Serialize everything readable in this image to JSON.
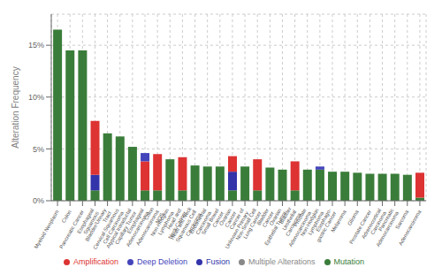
{
  "chart_data": {
    "type": "bar",
    "stacked": true,
    "categories": [
      "Myeloid Neoplasm",
      "Colon",
      "Pancreatic Cancer",
      "Esophageal\nSquamous",
      "Bladder/Urinary\nTract",
      "Cervical Squamous\nCell Carcinoma",
      "Atypical Intraductal\nCapillary Tumor",
      "Esophageal\nAdenocarcinoma",
      "Colon\nAdenocarcinoma\nNOS",
      "Non-Hodgkin\nLymphoma",
      "Head and\nNeck Cancer",
      "Head and Neck\nSquamous Cell\nCarcinoma",
      "Endometrial\nCarcinoma",
      "Small Bowel\nCancer",
      "Ovarian\nCancer",
      "Cancer of\nUnknown Primary",
      "Non-Small Cell\nLung Cancer",
      "Bladder\nCancer",
      "Ovarian\nEpithelial Tumor",
      "Bladder\nUrothelial\nCarcinoma",
      "Prostate\nAdenocarcinoma",
      "Non-Hodgkin\nLymphoma",
      "Esophago-\ngastric Cancer",
      "Melanoma",
      "Glioma",
      "Prostate Cancer",
      "Adrenocortical\nCarcinoma",
      "Pancreatic\nAdenocarcinoma",
      "Sarcoma",
      "Adenocarcinoma"
    ],
    "series": [
      {
        "name": "Mutation",
        "color": "#3a7d3a",
        "values": [
          16.5,
          14.5,
          14.5,
          1.0,
          6.5,
          6.2,
          5.2,
          1.0,
          1.0,
          4.0,
          1.0,
          3.4,
          3.3,
          3.3,
          1.0,
          3.3,
          1.0,
          3.2,
          3.0,
          1.0,
          3.0,
          3.0,
          2.8,
          2.8,
          2.7,
          2.6,
          2.6,
          2.6,
          2.5,
          0.3
        ]
      },
      {
        "name": "Fusion",
        "color": "#3333aa",
        "values": [
          0.0,
          0.0,
          0.0,
          1.5,
          0.0,
          0.0,
          0.0,
          0.0,
          0.0,
          0.0,
          0.0,
          0.0,
          0.0,
          0.0,
          1.8,
          0.0,
          0.0,
          0.0,
          0.0,
          0.0,
          0.0,
          0.0,
          0.0,
          0.0,
          0.0,
          0.0,
          0.0,
          0.0,
          0.0,
          0.0
        ]
      },
      {
        "name": "Amplification",
        "color": "#dd3333",
        "values": [
          0.0,
          0.0,
          0.0,
          5.2,
          0.0,
          0.0,
          0.0,
          2.8,
          3.5,
          0.0,
          3.2,
          0.0,
          0.0,
          0.0,
          1.5,
          0.0,
          3.0,
          0.0,
          0.0,
          2.8,
          0.0,
          0.0,
          0.0,
          0.0,
          0.0,
          0.0,
          0.0,
          0.0,
          0.0,
          2.4
        ]
      },
      {
        "name": "Deep Deletion",
        "color": "#4444bb",
        "values": [
          0.0,
          0.0,
          0.0,
          0.0,
          0.0,
          0.0,
          0.0,
          0.8,
          0.0,
          0.0,
          0.0,
          0.0,
          0.0,
          0.0,
          0.0,
          0.0,
          0.0,
          0.0,
          0.0,
          0.0,
          0.0,
          0.3,
          0.0,
          0.0,
          0.0,
          0.0,
          0.0,
          0.0,
          0.0,
          0.0
        ]
      },
      {
        "name": "Multiple Alterations",
        "color": "#888888",
        "values": [
          0.0,
          0.0,
          0.0,
          0.0,
          0.0,
          0.0,
          0.0,
          0.0,
          0.0,
          0.0,
          0.0,
          0.0,
          0.0,
          0.0,
          0.0,
          0.0,
          0.0,
          0.0,
          0.0,
          0.0,
          0.0,
          0.0,
          0.0,
          0.0,
          0.0,
          0.0,
          0.0,
          0.0,
          0.0,
          0.0
        ]
      }
    ],
    "ylabel": "Alteration Frequency",
    "ylim": [
      0,
      18
    ],
    "yticks": [
      {
        "value": 0,
        "label": "0%"
      },
      {
        "value": 5,
        "label": "5%"
      },
      {
        "value": 10,
        "label": "10%"
      },
      {
        "value": 15,
        "label": "15%"
      }
    ],
    "grid": true,
    "legend": "bottom"
  }
}
